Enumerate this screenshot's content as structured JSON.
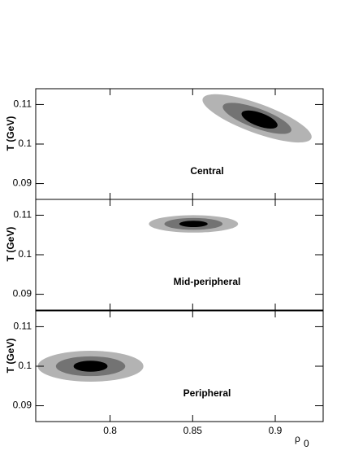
{
  "chart_data": [
    {
      "type": "contour",
      "label": "Central",
      "y_label": "T (GeV)",
      "xlim": [
        0.755,
        0.929
      ],
      "ylim": [
        0.086,
        0.114
      ],
      "xticks": [
        0.8,
        0.85,
        0.9
      ],
      "xtick_labels": false,
      "yticks": [
        0.09,
        0.1,
        0.11
      ],
      "rotate": 20,
      "contours": [
        {
          "color": "#b3b3b3",
          "x": 0.889,
          "y": 0.1065,
          "rx": 0.035,
          "ry": 0.0037
        },
        {
          "color": "#737373",
          "x": 0.889,
          "y": 0.1065,
          "rx": 0.022,
          "ry": 0.0025
        },
        {
          "color": "#000000",
          "x": 0.8905,
          "y": 0.1062,
          "rx": 0.0115,
          "ry": 0.0017
        }
      ]
    },
    {
      "type": "contour",
      "label": "Mid-peripheral",
      "y_label": "T (GeV)",
      "xlim": [
        0.755,
        0.929
      ],
      "ylim": [
        0.086,
        0.114
      ],
      "xticks": [
        0.8,
        0.85,
        0.9
      ],
      "xtick_labels": false,
      "yticks": [
        0.09,
        0.1,
        0.11
      ],
      "rotate": 0,
      "contours": [
        {
          "color": "#b3b3b3",
          "x": 0.8505,
          "y": 0.1078,
          "rx": 0.027,
          "ry": 0.0022
        },
        {
          "color": "#737373",
          "x": 0.8505,
          "y": 0.1078,
          "rx": 0.0176,
          "ry": 0.0015
        },
        {
          "color": "#000000",
          "x": 0.8505,
          "y": 0.1078,
          "rx": 0.0086,
          "ry": 0.0008
        }
      ]
    },
    {
      "type": "contour",
      "label": "Peripheral",
      "y_label": "T (GeV)",
      "x_label": "ρ",
      "x_label_sub": "0",
      "xlim": [
        0.755,
        0.929
      ],
      "ylim": [
        0.086,
        0.114
      ],
      "xticks": [
        0.8,
        0.85,
        0.9
      ],
      "xtick_labels": true,
      "yticks": [
        0.09,
        0.1,
        0.11
      ],
      "rotate": 0,
      "contours": [
        {
          "color": "#b3b3b3",
          "x": 0.7882,
          "y": 0.1,
          "rx": 0.032,
          "ry": 0.0039
        },
        {
          "color": "#737373",
          "x": 0.7882,
          "y": 0.1,
          "rx": 0.021,
          "ry": 0.0025
        },
        {
          "color": "#000000",
          "x": 0.7882,
          "y": 0.1,
          "rx": 0.0103,
          "ry": 0.0014
        }
      ]
    }
  ]
}
